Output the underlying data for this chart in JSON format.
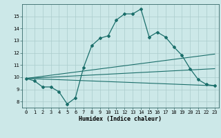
{
  "xlabel": "Humidex (Indice chaleur)",
  "ylabel": "",
  "background_color": "#cce8e8",
  "grid_color": "#aacccc",
  "line_color": "#1a6e6a",
  "xlim": [
    -0.5,
    23.5
  ],
  "ylim": [
    7.5,
    16.0
  ],
  "xticks": [
    0,
    1,
    2,
    3,
    4,
    5,
    6,
    7,
    8,
    9,
    10,
    11,
    12,
    13,
    14,
    15,
    16,
    17,
    18,
    19,
    20,
    21,
    22,
    23
  ],
  "yticks": [
    8,
    9,
    10,
    11,
    12,
    13,
    14,
    15
  ],
  "line1_x": [
    0,
    1,
    2,
    3,
    4,
    5,
    6,
    7,
    8,
    9,
    10,
    11,
    12,
    13,
    14,
    15,
    16,
    17,
    18,
    19,
    20,
    21,
    22,
    23
  ],
  "line1_y": [
    9.9,
    9.7,
    9.2,
    9.2,
    8.8,
    7.8,
    8.3,
    10.8,
    12.6,
    13.2,
    13.4,
    14.7,
    15.2,
    15.2,
    15.6,
    13.3,
    13.7,
    13.3,
    12.5,
    11.8,
    10.7,
    9.8,
    9.4,
    9.3
  ],
  "line2_x": [
    0,
    23
  ],
  "line2_y": [
    9.9,
    9.3
  ],
  "line3_x": [
    0,
    23
  ],
  "line3_y": [
    9.9,
    11.9
  ],
  "line4_x": [
    0,
    23
  ],
  "line4_y": [
    9.9,
    10.7
  ]
}
